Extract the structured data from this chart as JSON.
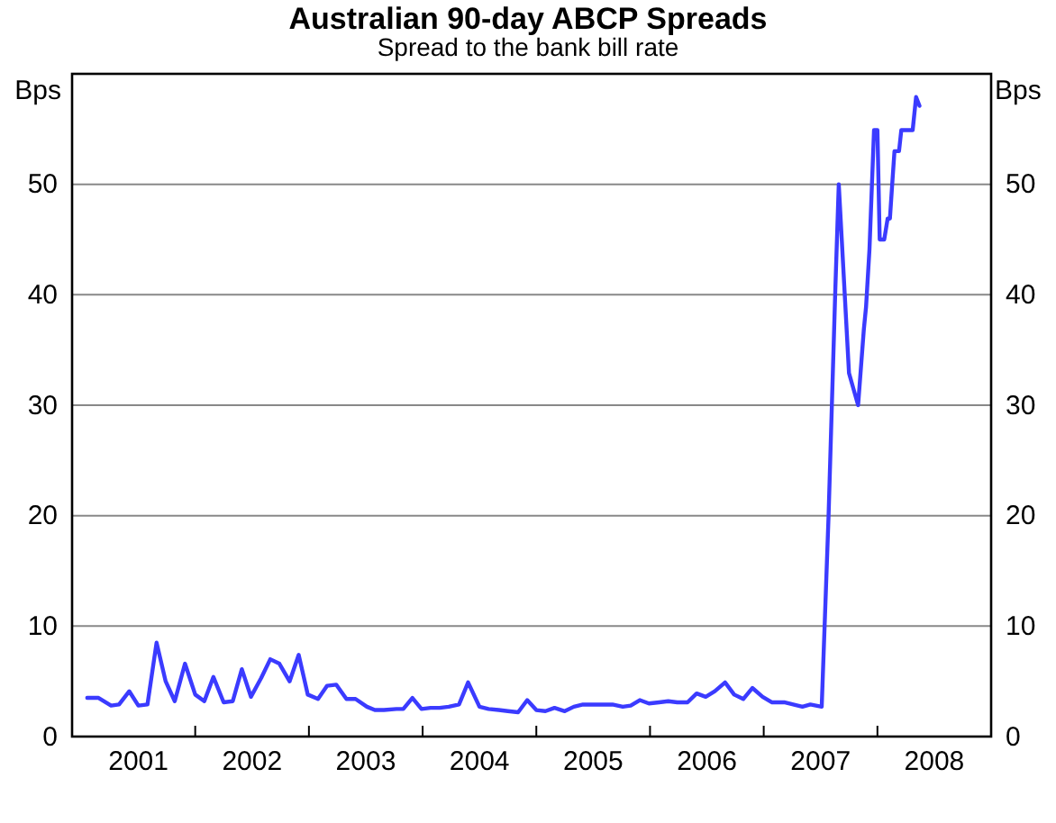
{
  "chart_data": {
    "type": "line",
    "title": "Australian 90-day ABCP Spreads",
    "subtitle": "Spread to the bank bill rate",
    "ylabel": "Bps",
    "y2label": "Bps",
    "xlim": [
      2000.917,
      2009
    ],
    "xticks": [
      {
        "value": 2002,
        "label": null
      },
      {
        "value": 2003,
        "label": null
      },
      {
        "value": 2004,
        "label": null
      },
      {
        "value": 2005,
        "label": null
      },
      {
        "value": 2006,
        "label": null
      },
      {
        "value": 2007,
        "label": null
      },
      {
        "value": 2008,
        "label": null
      },
      {
        "value": 2001.5,
        "label": "2001"
      },
      {
        "value": 2002.5,
        "label": "2002"
      },
      {
        "value": 2003.5,
        "label": "2003"
      },
      {
        "value": 2004.5,
        "label": "2004"
      },
      {
        "value": 2005.5,
        "label": "2005"
      },
      {
        "value": 2006.5,
        "label": "2006"
      },
      {
        "value": 2007.5,
        "label": "2007"
      },
      {
        "value": 2008.5,
        "label": "2008"
      }
    ],
    "ylim": [
      0,
      60
    ],
    "yticks": [
      0,
      10,
      20,
      30,
      40,
      50
    ],
    "y2lim": [
      0,
      60
    ],
    "y2ticks": [
      0,
      10,
      20,
      30,
      40,
      50
    ],
    "grid": "y",
    "series": [
      {
        "color": "#3b3bff",
        "x": [
          2001.05,
          2001.15,
          2001.26,
          2001.33,
          2001.42,
          2001.5,
          2001.58,
          2001.66,
          2001.74,
          2001.82,
          2001.91,
          2002.0,
          2002.08,
          2002.16,
          2002.25,
          2002.33,
          2002.41,
          2002.49,
          2002.58,
          2002.66,
          2002.74,
          2002.83,
          2002.91,
          2002.99,
          2003.08,
          2003.16,
          2003.24,
          2003.33,
          2003.41,
          2003.51,
          2003.58,
          2003.66,
          2003.77,
          2003.83,
          2003.91,
          2003.99,
          2004.07,
          2004.15,
          2004.23,
          2004.32,
          2004.4,
          2004.5,
          2004.58,
          2004.67,
          2004.75,
          2004.84,
          2004.92,
          2005.0,
          2005.08,
          2005.16,
          2005.25,
          2005.33,
          2005.41,
          2005.49,
          2005.59,
          2005.67,
          2005.76,
          2005.83,
          2005.91,
          2005.99,
          2006.08,
          2006.16,
          2006.24,
          2006.33,
          2006.41,
          2006.49,
          2006.57,
          2006.66,
          2006.74,
          2006.82,
          2006.9,
          2006.99,
          2007.07,
          2007.18,
          2007.26,
          2007.34,
          2007.41,
          2007.51,
          2007.57,
          2007.63,
          2007.66,
          2007.75,
          2007.83,
          2007.88,
          2007.9,
          2007.93,
          2007.97,
          2008.0,
          2008.02,
          2008.06,
          2008.09,
          2008.11,
          2008.13,
          2008.15,
          2008.19,
          2008.21,
          2008.31,
          2008.34,
          2008.37
        ],
        "values": [
          3.5,
          3.5,
          2.8,
          2.9,
          4.1,
          2.8,
          2.9,
          8.5,
          5.0,
          3.2,
          6.6,
          3.8,
          3.2,
          5.4,
          3.1,
          3.2,
          6.1,
          3.6,
          5.3,
          7.0,
          6.6,
          5.0,
          7.4,
          3.8,
          3.4,
          4.6,
          4.7,
          3.4,
          3.4,
          2.7,
          2.4,
          2.4,
          2.5,
          2.5,
          3.5,
          2.5,
          2.6,
          2.6,
          2.7,
          2.9,
          4.9,
          2.7,
          2.5,
          2.4,
          2.3,
          2.2,
          3.3,
          2.4,
          2.3,
          2.6,
          2.3,
          2.7,
          2.9,
          2.9,
          2.9,
          2.9,
          2.7,
          2.8,
          3.3,
          3.0,
          3.1,
          3.2,
          3.1,
          3.1,
          3.9,
          3.6,
          4.1,
          4.9,
          3.8,
          3.4,
          4.4,
          3.6,
          3.1,
          3.1,
          2.9,
          2.7,
          2.9,
          2.7,
          19.9,
          40.6,
          50.0,
          32.9,
          30.0,
          36.8,
          38.9,
          44.1,
          54.9,
          54.9,
          45.0,
          45.0,
          46.9,
          46.9,
          50.0,
          53.0,
          53.0,
          54.9,
          54.9,
          57.9,
          57.1
        ]
      }
    ]
  }
}
